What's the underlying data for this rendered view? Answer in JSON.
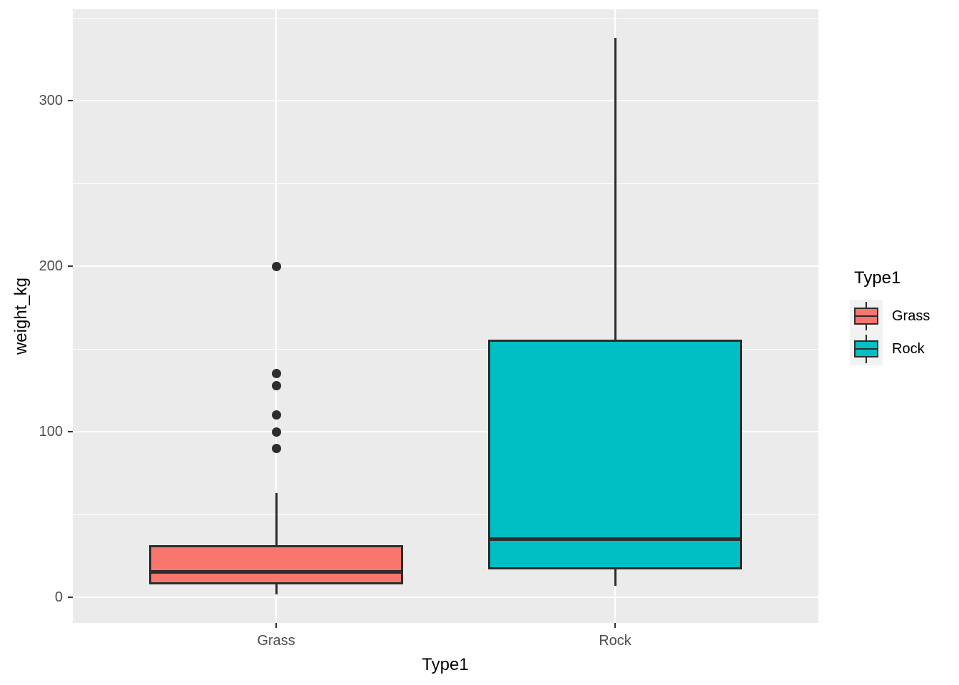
{
  "figure": {
    "background": "#FFFFFF",
    "panel_background": "#EBEBEB",
    "gridline_color": "#FFFFFF",
    "outline_color": "#2D2D2D",
    "tick_label_color": "#4D4D4D",
    "axis_title_color": "#000000",
    "legend_key_background": "#F2F2F2"
  },
  "chart_data": {
    "type": "boxplot",
    "title": "",
    "xlabel": "Type1",
    "ylabel": "weight_kg",
    "categories": [
      "Grass",
      "Rock"
    ],
    "y_ticks": [
      0,
      100,
      200,
      300
    ],
    "y_minor_gridlines": [
      50,
      150,
      250,
      350
    ],
    "ylim": [
      -15.5,
      355
    ],
    "grid": "on",
    "legend_position": "right",
    "series": [
      {
        "name": "Grass",
        "fill": "#F8766D",
        "whisker_low": 1.9,
        "q1": 7.8,
        "median": 15.5,
        "q3": 31.5,
        "whisker_high": 63,
        "outliers": [
          90,
          100,
          110,
          128,
          135,
          200
        ]
      },
      {
        "name": "Rock",
        "fill": "#00BFC4",
        "whisker_low": 7,
        "q1": 16.8,
        "median": 35,
        "q3": 155.5,
        "whisker_high": 338,
        "outliers": []
      }
    ],
    "legend": {
      "title": "Type1",
      "entries": [
        {
          "label": "Grass",
          "fill": "#F8766D"
        },
        {
          "label": "Rock",
          "fill": "#00BFC4"
        }
      ]
    }
  }
}
